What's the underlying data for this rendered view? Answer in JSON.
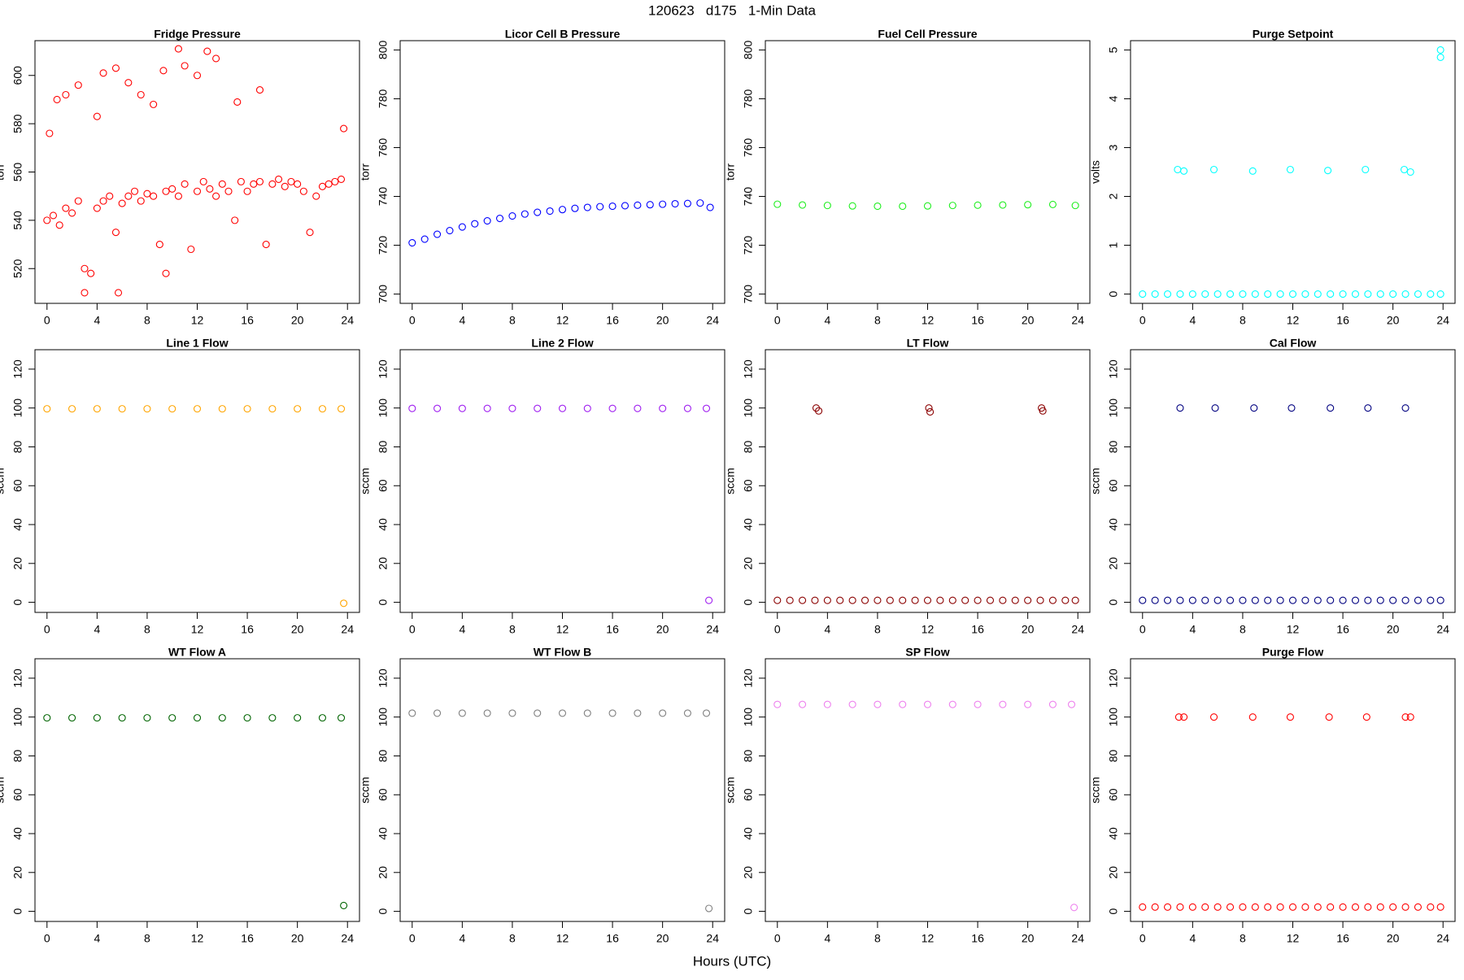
{
  "title": "120623   d175   1-Min Data",
  "xlabel": "Hours (UTC)",
  "chart_data": [
    {
      "type": "scatter",
      "title": "Fridge Pressure",
      "ylabel": "torr",
      "color": "#ff0000",
      "xlim": [
        -0.96,
        24.96
      ],
      "xticks": [
        0,
        4,
        8,
        12,
        16,
        20,
        24
      ],
      "ylim": [
        505.6,
        614.4
      ],
      "yticks": [
        520,
        540,
        560,
        580,
        600
      ],
      "x": [
        0,
        0.5,
        1,
        1.5,
        2,
        2.5,
        3,
        3.5,
        4,
        4.5,
        5,
        5.5,
        6,
        6.5,
        7,
        7.5,
        8,
        8.5,
        9,
        9.5,
        10,
        10.5,
        11,
        11.5,
        12,
        12.5,
        13,
        13.5,
        14,
        14.5,
        15,
        15.5,
        16,
        16.5,
        17,
        17.5,
        18,
        18.5,
        19,
        19.5,
        20,
        20.5,
        21,
        21.5,
        22,
        22.5,
        23,
        23.5,
        0.2,
        0.8,
        1.5,
        2.5,
        4,
        4.5,
        5.5,
        6.5,
        7.5,
        8.5,
        9.3,
        10.5,
        11,
        12,
        12.8,
        13.5,
        15.2,
        17,
        23.7,
        3,
        5.7,
        9.5
      ],
      "values": [
        540,
        542,
        538,
        545,
        543,
        548,
        520,
        518,
        545,
        548,
        550,
        535,
        547,
        550,
        552,
        548,
        551,
        550,
        530,
        552,
        553,
        550,
        555,
        528,
        552,
        556,
        553,
        550,
        555,
        552,
        540,
        556,
        552,
        555,
        556,
        530,
        555,
        557,
        554,
        556,
        555,
        552,
        535,
        550,
        554,
        555,
        556,
        557,
        576,
        590,
        592,
        596,
        583,
        601,
        603,
        597,
        592,
        588,
        602,
        611,
        604,
        600,
        610,
        607,
        589,
        594,
        578,
        510,
        510,
        518
      ]
    },
    {
      "type": "scatter",
      "title": "Licor Cell B Pressure",
      "ylabel": "torr",
      "color": "#0000ff",
      "xlim": [
        -0.96,
        24.96
      ],
      "xticks": [
        0,
        4,
        8,
        12,
        16,
        20,
        24
      ],
      "ylim": [
        696.2,
        803.8
      ],
      "yticks": [
        700,
        720,
        740,
        760,
        780,
        800
      ],
      "x": [
        0,
        1,
        2,
        3,
        4,
        5,
        6,
        7,
        8,
        9,
        10,
        11,
        12,
        13,
        14,
        15,
        16,
        17,
        18,
        19,
        20,
        21,
        22,
        23,
        23.8
      ],
      "values": [
        721,
        722.5,
        724.5,
        726,
        727.5,
        728.8,
        730,
        731,
        732,
        732.8,
        733.5,
        734,
        734.6,
        735.1,
        735.5,
        735.8,
        736,
        736.2,
        736.4,
        736.6,
        736.8,
        737,
        737.1,
        737.3,
        735.5
      ]
    },
    {
      "type": "scatter",
      "title": "Fuel Cell Pressure",
      "ylabel": "torr",
      "color": "#22ee22",
      "xlim": [
        -0.96,
        24.96
      ],
      "xticks": [
        0,
        4,
        8,
        12,
        16,
        20,
        24
      ],
      "ylim": [
        696.2,
        803.8
      ],
      "yticks": [
        700,
        720,
        740,
        760,
        780,
        800
      ],
      "x": [
        0,
        2,
        4,
        6,
        8,
        10,
        12,
        14,
        16,
        18,
        20,
        22,
        23.8
      ],
      "values": [
        736.8,
        736.5,
        736.3,
        736.1,
        736,
        736,
        736.1,
        736.3,
        736.4,
        736.5,
        736.6,
        736.7,
        736.3
      ]
    },
    {
      "type": "scatter",
      "title": "Purge Setpoint",
      "ylabel": "volts",
      "color": "#00ffff",
      "xlim": [
        -0.96,
        24.96
      ],
      "xticks": [
        0,
        4,
        8,
        12,
        16,
        20,
        24
      ],
      "ylim": [
        -0.19,
        5.19
      ],
      "yticks": [
        0,
        1,
        2,
        3,
        4,
        5
      ],
      "x": [
        0,
        1,
        2,
        3,
        4,
        5,
        6,
        7,
        8,
        9,
        10,
        11,
        12,
        13,
        14,
        15,
        16,
        17,
        18,
        19,
        20,
        21,
        22,
        23,
        23.8,
        2.8,
        3.3,
        5.7,
        8.8,
        11.8,
        14.8,
        17.8,
        20.9,
        21.4,
        23.8,
        23.8
      ],
      "values": [
        0,
        0,
        0,
        0,
        0,
        0,
        0,
        0,
        0,
        0,
        0,
        0,
        0,
        0,
        0,
        0,
        0,
        0,
        0,
        0,
        0,
        0,
        0,
        0,
        0,
        2.55,
        2.52,
        2.55,
        2.52,
        2.55,
        2.53,
        2.55,
        2.55,
        2.5,
        5,
        4.85
      ]
    },
    {
      "type": "scatter",
      "title": "Line 1 Flow",
      "ylabel": "sccm",
      "color": "#ffa500",
      "xlim": [
        -0.96,
        24.96
      ],
      "xticks": [
        0,
        4,
        8,
        12,
        16,
        20,
        24
      ],
      "ylim": [
        -5.2,
        130
      ],
      "yticks": [
        0,
        20,
        40,
        60,
        80,
        100,
        120
      ],
      "x": [
        0,
        2,
        4,
        6,
        8,
        10,
        12,
        14,
        16,
        18,
        20,
        22,
        23.5,
        23.7
      ],
      "values": [
        99.6,
        99.6,
        99.6,
        99.6,
        99.6,
        99.6,
        99.6,
        99.6,
        99.6,
        99.6,
        99.6,
        99.6,
        99.6,
        -0.5
      ]
    },
    {
      "type": "scatter",
      "title": "Line 2 Flow",
      "ylabel": "sccm",
      "color": "#a020f0",
      "xlim": [
        -0.96,
        24.96
      ],
      "xticks": [
        0,
        4,
        8,
        12,
        16,
        20,
        24
      ],
      "ylim": [
        -5.2,
        130
      ],
      "yticks": [
        0,
        20,
        40,
        60,
        80,
        100,
        120
      ],
      "x": [
        0,
        2,
        4,
        6,
        8,
        10,
        12,
        14,
        16,
        18,
        20,
        22,
        23.5,
        23.7
      ],
      "values": [
        99.8,
        99.8,
        99.8,
        99.8,
        99.8,
        99.8,
        99.8,
        99.8,
        99.8,
        99.8,
        99.8,
        99.8,
        99.8,
        1
      ]
    },
    {
      "type": "scatter",
      "title": "LT Flow",
      "ylabel": "sccm",
      "color": "#8b0000",
      "xlim": [
        -0.96,
        24.96
      ],
      "xticks": [
        0,
        4,
        8,
        12,
        16,
        20,
        24
      ],
      "ylim": [
        -5.2,
        130
      ],
      "yticks": [
        0,
        20,
        40,
        60,
        80,
        100,
        120
      ],
      "x": [
        0,
        1,
        2,
        3,
        4,
        5,
        6,
        7,
        8,
        9,
        10,
        11,
        12,
        13,
        14,
        15,
        16,
        17,
        18,
        19,
        20,
        21,
        22,
        23,
        23.8,
        3.1,
        3.3,
        12.1,
        12.2,
        21.1,
        21.2
      ],
      "values": [
        1,
        1,
        1,
        1,
        1,
        1,
        1,
        1,
        1,
        1,
        1,
        1,
        1,
        1,
        1,
        1,
        1,
        1,
        1,
        1,
        1,
        1,
        1,
        1,
        1,
        100,
        98.5,
        100,
        98,
        100,
        98.5
      ]
    },
    {
      "type": "scatter",
      "title": "Cal Flow",
      "ylabel": "sccm",
      "color": "#000080",
      "xlim": [
        -0.96,
        24.96
      ],
      "xticks": [
        0,
        4,
        8,
        12,
        16,
        20,
        24
      ],
      "ylim": [
        -5.2,
        130
      ],
      "yticks": [
        0,
        20,
        40,
        60,
        80,
        100,
        120
      ],
      "x": [
        0,
        1,
        2,
        3,
        4,
        5,
        6,
        7,
        8,
        9,
        10,
        11,
        12,
        13,
        14,
        15,
        16,
        17,
        18,
        19,
        20,
        21,
        22,
        23,
        23.8,
        3,
        5.8,
        8.9,
        11.9,
        15,
        18,
        21
      ],
      "values": [
        1,
        1,
        1,
        1,
        1,
        1,
        1,
        1,
        1,
        1,
        1,
        1,
        1,
        1,
        1,
        1,
        1,
        1,
        1,
        1,
        1,
        1,
        1,
        1,
        1,
        100,
        100,
        100,
        100,
        100,
        100,
        100
      ]
    },
    {
      "type": "scatter",
      "title": "WT Flow A",
      "ylabel": "sccm",
      "color": "#006400",
      "xlim": [
        -0.96,
        24.96
      ],
      "xticks": [
        0,
        4,
        8,
        12,
        16,
        20,
        24
      ],
      "ylim": [
        -5.2,
        130
      ],
      "yticks": [
        0,
        20,
        40,
        60,
        80,
        100,
        120
      ],
      "x": [
        0,
        2,
        4,
        6,
        8,
        10,
        12,
        14,
        16,
        18,
        20,
        22,
        23.5,
        23.7
      ],
      "values": [
        99.6,
        99.6,
        99.6,
        99.6,
        99.6,
        99.6,
        99.6,
        99.6,
        99.6,
        99.6,
        99.6,
        99.6,
        99.6,
        3
      ]
    },
    {
      "type": "scatter",
      "title": "WT Flow B",
      "ylabel": "sccm",
      "color": "#808080",
      "xlim": [
        -0.96,
        24.96
      ],
      "xticks": [
        0,
        4,
        8,
        12,
        16,
        20,
        24
      ],
      "ylim": [
        -5.2,
        130
      ],
      "yticks": [
        0,
        20,
        40,
        60,
        80,
        100,
        120
      ],
      "x": [
        0,
        2,
        4,
        6,
        8,
        10,
        12,
        14,
        16,
        18,
        20,
        22,
        23.5,
        23.7
      ],
      "values": [
        102,
        102,
        102,
        102,
        102,
        102,
        102,
        102,
        102,
        102,
        102,
        102,
        102,
        1.5
      ]
    },
    {
      "type": "scatter",
      "title": "SP Flow",
      "ylabel": "sccm",
      "color": "#ee82ee",
      "xlim": [
        -0.96,
        24.96
      ],
      "xticks": [
        0,
        4,
        8,
        12,
        16,
        20,
        24
      ],
      "ylim": [
        -5.2,
        130
      ],
      "yticks": [
        0,
        20,
        40,
        60,
        80,
        100,
        120
      ],
      "x": [
        0,
        2,
        4,
        6,
        8,
        10,
        12,
        14,
        16,
        18,
        20,
        22,
        23.5,
        23.7
      ],
      "values": [
        106.5,
        106.5,
        106.5,
        106.5,
        106.5,
        106.5,
        106.5,
        106.5,
        106.5,
        106.5,
        106.5,
        106.5,
        106.5,
        2
      ]
    },
    {
      "type": "scatter",
      "title": "Purge Flow",
      "ylabel": "sccm",
      "color": "#ff0000",
      "xlim": [
        -0.96,
        24.96
      ],
      "xticks": [
        0,
        4,
        8,
        12,
        16,
        20,
        24
      ],
      "ylim": [
        -5.2,
        130
      ],
      "yticks": [
        0,
        20,
        40,
        60,
        80,
        100,
        120
      ],
      "x": [
        0,
        1,
        2,
        3,
        4,
        5,
        6,
        7,
        8,
        9,
        10,
        11,
        12,
        13,
        14,
        15,
        16,
        17,
        18,
        19,
        20,
        21,
        22,
        23,
        23.8,
        2.9,
        3.3,
        5.7,
        8.8,
        11.8,
        14.9,
        17.9,
        21,
        21.4
      ],
      "values": [
        2.2,
        2.2,
        2.2,
        2.2,
        2.2,
        2.2,
        2.2,
        2.2,
        2.2,
        2.2,
        2.2,
        2.2,
        2.2,
        2.2,
        2.2,
        2.2,
        2.2,
        2.2,
        2.2,
        2.2,
        2.2,
        2.2,
        2.2,
        2.2,
        2.2,
        100,
        100,
        100,
        100,
        100,
        100,
        100,
        100,
        100
      ]
    }
  ]
}
